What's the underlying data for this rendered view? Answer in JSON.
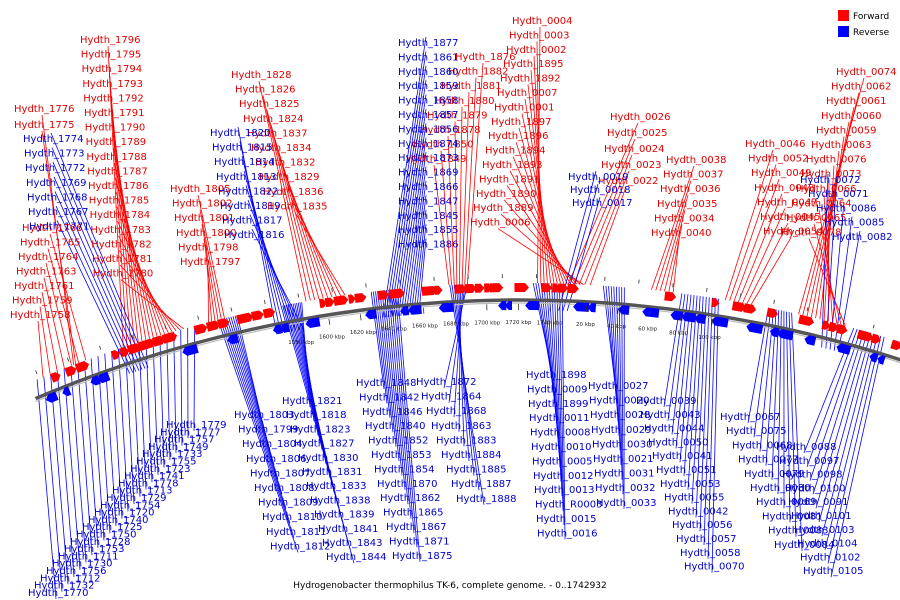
{
  "caption": "Hydrogenobacter thermophilus TK-6, complete genome. - 0..1742932",
  "legend": [
    {
      "label": "Forward",
      "color": "#ff0000"
    },
    {
      "label": "Reverse",
      "color": "#0000ff"
    }
  ],
  "colors": {
    "forward": "#ff0000",
    "reverse": "#0000ff",
    "backbone": "#666666"
  },
  "ticks": [
    {
      "label": "1580 kbp",
      "pos": 1580
    },
    {
      "label": "1600 kbp",
      "pos": 1600
    },
    {
      "label": "1620 kbp",
      "pos": 1620
    },
    {
      "label": "1640 kbp",
      "pos": 1640
    },
    {
      "label": "1660 kbp",
      "pos": 1660
    },
    {
      "label": "1680 kbp",
      "pos": 1680
    },
    {
      "label": "1700 kbp",
      "pos": 1700
    },
    {
      "label": "1720 kbp",
      "pos": 1720
    },
    {
      "label": "1740 kbp",
      "pos": 1740
    },
    {
      "label": "20 kbp",
      "pos": 1762.9
    },
    {
      "label": "40 kbp",
      "pos": 1782.9
    },
    {
      "label": "60 kbp",
      "pos": 1802.9
    },
    {
      "label": "80 kbp",
      "pos": 1822.9
    },
    {
      "label": "100 kbp",
      "pos": 1842.9
    }
  ],
  "forward_labels": {
    "top": [
      "Hydth_0004",
      "Hydth_0003",
      "Hydth_0002",
      "Hydth_1895",
      "Hydth_1892",
      "Hydth_0007",
      "Hydth_0001",
      "Hydth_1897",
      "Hydth_1896",
      "Hydth_1894",
      "Hydth_1893",
      "Hydth_1891",
      "Hydth_1890",
      "Hydth_1889",
      "Hydth_0006"
    ],
    "mid": [
      "Hydth_1876",
      "Hydth_1882",
      "Hydth_1881",
      "Hydth_1880",
      "Hydth_1879",
      "Hydth_1878",
      "Hydth_1850",
      "Hydth_1849"
    ],
    "a": [
      "Hydth_1828",
      "Hydth_1826",
      "Hydth_1825",
      "Hydth_1824",
      "Hydth_1837",
      "Hydth_1834",
      "Hydth_1832",
      "Hydth_1829",
      "Hydth_1836",
      "Hydth_1835"
    ],
    "b": [
      "Hydth_1796",
      "Hydth_1795",
      "Hydth_1794",
      "Hydth_1793",
      "Hydth_1792",
      "Hydth_1791",
      "Hydth_1790",
      "Hydth_1789",
      "Hydth_1788",
      "Hydth_1787",
      "Hydth_1786",
      "Hydth_1785",
      "Hydth_1784",
      "Hydth_1783",
      "Hydth_1782",
      "Hydth_1781",
      "Hydth_1780"
    ],
    "b2": [
      "Hydth_1805",
      "Hydth_1802",
      "Hydth_1801",
      "Hydth_1800",
      "Hydth_1798",
      "Hydth_1797"
    ],
    "c": [
      "Hydth_1776",
      "Hydth_1775"
    ],
    "d": [
      "Hydth_1766",
      "Hydth_1765",
      "Hydth_1764",
      "Hydth_1763",
      "Hydth_1761",
      "Hydth_1759",
      "Hydth_1758"
    ],
    "e": [
      "Hydth_0026",
      "Hydth_0025",
      "Hydth_0024",
      "Hydth_0023",
      "Hydth_0022"
    ],
    "f": [
      "Hydth_0038",
      "Hydth_0037",
      "Hydth_0036",
      "Hydth_0035",
      "Hydth_0034",
      "Hydth_0040"
    ],
    "g": [
      "Hydth_0046",
      "Hydth_0052",
      "Hydth_0049",
      "Hydth_0048",
      "Hydth_0047",
      "Hydth_0045",
      "Hydth_0054"
    ],
    "h": [
      "Hydth_0074",
      "Hydth_0062",
      "Hydth_0061",
      "Hydth_0060",
      "Hydth_0059",
      "Hydth_0063",
      "Hydth_0076",
      "Hydth_0073",
      "Hydth_0066",
      "Hydth_0064",
      "Hydth_0065",
      "Hydth_0078"
    ]
  },
  "reverse_labels": {
    "top": [
      "Hydth_1877",
      "Hydth_1861",
      "Hydth_1860",
      "Hydth_1859",
      "Hydth_1858",
      "Hydth_1857",
      "Hydth_1856",
      "Hydth_1874",
      "Hydth_1873",
      "Hydth_1869",
      "Hydth_1866",
      "Hydth_1847",
      "Hydth_1845",
      "Hydth_1855",
      "Hydth_1886"
    ],
    "a": [
      "Hydth_1820",
      "Hydth_1815",
      "Hydth_1814",
      "Hydth_1813",
      "Hydth_1822",
      "Hydth_1819",
      "Hydth_1817",
      "Hydth_1816"
    ],
    "b": [
      "Hydth_1774",
      "Hydth_1773",
      "Hydth_1772",
      "Hydth_1769",
      "Hydth_1768",
      "Hydth_1767",
      "Hydth_1771"
    ],
    "c": [
      "Hydth_0019",
      "Hydth_0018",
      "Hydth_0017"
    ],
    "d": [
      "Hydth_0072",
      "Hydth_0071",
      "Hydth_0086",
      "Hydth_0085",
      "Hydth_0082"
    ],
    "bottom_left": [
      "Hydth_1779",
      "Hydth_1777",
      "Hydth_1757",
      "Hydth_1749",
      "Hydth_1733",
      "Hydth_1755",
      "Hydth_1723",
      "Hydth_1741",
      "Hydth_1778",
      "Hydth_1713",
      "Hydth_1729",
      "Hydth_1754",
      "Hydth_1720",
      "Hydth_1740",
      "Hydth_1725",
      "Hydth_1750",
      "Hydth_1728",
      "Hydth_1753",
      "Hydth_1711",
      "Hydth_1730",
      "Hydth_1756",
      "Hydth_1712",
      "Hydth_1732",
      "Hydth_1770"
    ],
    "bottom_mid1": [
      "Hydth_1803",
      "Hydth_1799",
      "Hydth_1804",
      "Hydth_1806",
      "Hydth_1807",
      "Hydth_1808",
      "Hydth_1809",
      "Hydth_1810",
      "Hydth_1811",
      "Hydth_1812"
    ],
    "bottom_mid2": [
      "Hydth_1821",
      "Hydth_1818",
      "Hydth_1823",
      "Hydth_1827",
      "Hydth_1830",
      "Hydth_1831",
      "Hydth_1833",
      "Hydth_1838",
      "Hydth_1839",
      "Hydth_1841",
      "Hydth_1843",
      "Hydth_1844"
    ],
    "bottom_mid3": [
      "Hydth_1848",
      "Hydth_1842",
      "Hydth_1846",
      "Hydth_1840",
      "Hydth_1852",
      "Hydth_1853",
      "Hydth_1854",
      "Hydth_1870",
      "Hydth_1862",
      "Hydth_1865",
      "Hydth_1867",
      "Hydth_1871",
      "Hydth_1875"
    ],
    "bottom_mid4": [
      "Hydth_1872",
      "Hydth_1864",
      "Hydth_1868",
      "Hydth_1863",
      "Hydth_1883",
      "Hydth_1884",
      "Hydth_1885",
      "Hydth_1887",
      "Hydth_1888"
    ],
    "bottom_c": [
      "Hydth_1898",
      "Hydth_0009",
      "Hydth_1899",
      "Hydth_0011",
      "Hydth_0008",
      "Hydth_0010",
      "Hydth_0005",
      "Hydth_0012",
      "Hydth_0013",
      "Hydth_R0003",
      "Hydth_0015",
      "Hydth_0016"
    ],
    "bottom_d": [
      "Hydth_0027",
      "Hydth_0020",
      "Hydth_0028",
      "Hydth_0029",
      "Hydth_0030",
      "Hydth_0021",
      "Hydth_0031",
      "Hydth_0032",
      "Hydth_0033"
    ],
    "bottom_e": [
      "Hydth_0039",
      "Hydth_0043",
      "Hydth_0044",
      "Hydth_0050",
      "Hydth_0041",
      "Hydth_0051",
      "Hydth_0053",
      "Hydth_0055",
      "Hydth_0042",
      "Hydth_0056",
      "Hydth_0057",
      "Hydth_0058",
      "Hydth_0070"
    ],
    "bottom_f": [
      "Hydth_0067",
      "Hydth_0075",
      "Hydth_0068",
      "Hydth_0077",
      "Hydth_0079",
      "Hydth_0080",
      "Hydth_0069",
      "Hydth_0081",
      "Hydth_0083",
      "Hydth_0084"
    ],
    "bottom_g": [
      "Hydth_0088",
      "Hydth_0097",
      "Hydth_0098",
      "Hydth_0100",
      "Hydth_0091",
      "Hydth_0101",
      "Hydth_0103",
      "Hydth_0104",
      "Hydth_0102",
      "Hydth_0105"
    ]
  }
}
